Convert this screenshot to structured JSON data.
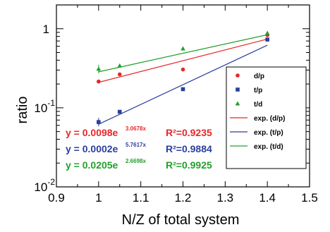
{
  "chart_data": {
    "type": "scatter",
    "xlabel": "N/Z of total system",
    "ylabel": "ratio",
    "xlim": [
      0.9,
      1.5
    ],
    "ylim": [
      0.01,
      2
    ],
    "y_scale": "log",
    "x_ticks": [
      "0.9",
      "1",
      "1.1",
      "1.2",
      "1.3",
      "1.4",
      "1.5"
    ],
    "y_ticks": [
      {
        "base": "1",
        "exp": ""
      },
      {
        "base": "10",
        "exp": "-1"
      },
      {
        "base": "10",
        "exp": "-2"
      }
    ],
    "series": [
      {
        "name": "d/p",
        "marker": "circle",
        "color": "#e8262a",
        "x": [
          1.0,
          1.05,
          1.2,
          1.4
        ],
        "y": [
          0.215,
          0.265,
          0.305,
          0.83
        ]
      },
      {
        "name": "t/p",
        "marker": "square",
        "color": "#2a3f9f",
        "x": [
          1.0,
          1.05,
          1.2,
          1.4
        ],
        "y": [
          0.066,
          0.089,
          0.172,
          0.73
        ]
      },
      {
        "name": "t/d",
        "marker": "triangle",
        "color": "#22a02a",
        "x": [
          1.0,
          1.05,
          1.2,
          1.4
        ],
        "y": [
          0.31,
          0.34,
          0.56,
          0.88
        ]
      }
    ],
    "fits": [
      {
        "name": "exp. (d/p)",
        "color": "#e8262a",
        "x0": 1.0,
        "x1": 1.4,
        "y0": 0.21,
        "y1": 0.74
      },
      {
        "name": "exp. (t/p)",
        "color": "#2a3f9f",
        "x0": 1.0,
        "x1": 1.4,
        "y0": 0.062,
        "y1": 0.62
      },
      {
        "name": "exp. (t/d)",
        "color": "#22a02a",
        "x0": 1.0,
        "x1": 1.4,
        "y0": 0.285,
        "y1": 0.84
      }
    ],
    "annotations": [
      {
        "name": "fit-d-p",
        "color": "#e8262a",
        "prefix": "y = 0.0098e",
        "exponent": "3.0678x",
        "r2": "R²=0.9235"
      },
      {
        "name": "fit-t-p",
        "color": "#2a3f9f",
        "prefix": "y = 0.0002e",
        "exponent": "5.7617x",
        "r2": "R²=0.9884"
      },
      {
        "name": "fit-t-d",
        "color": "#22a02a",
        "prefix": "y = 0.0205e",
        "exponent": "2.6698x",
        "r2": "R²=0.9925"
      }
    ],
    "legend_position": "right"
  }
}
